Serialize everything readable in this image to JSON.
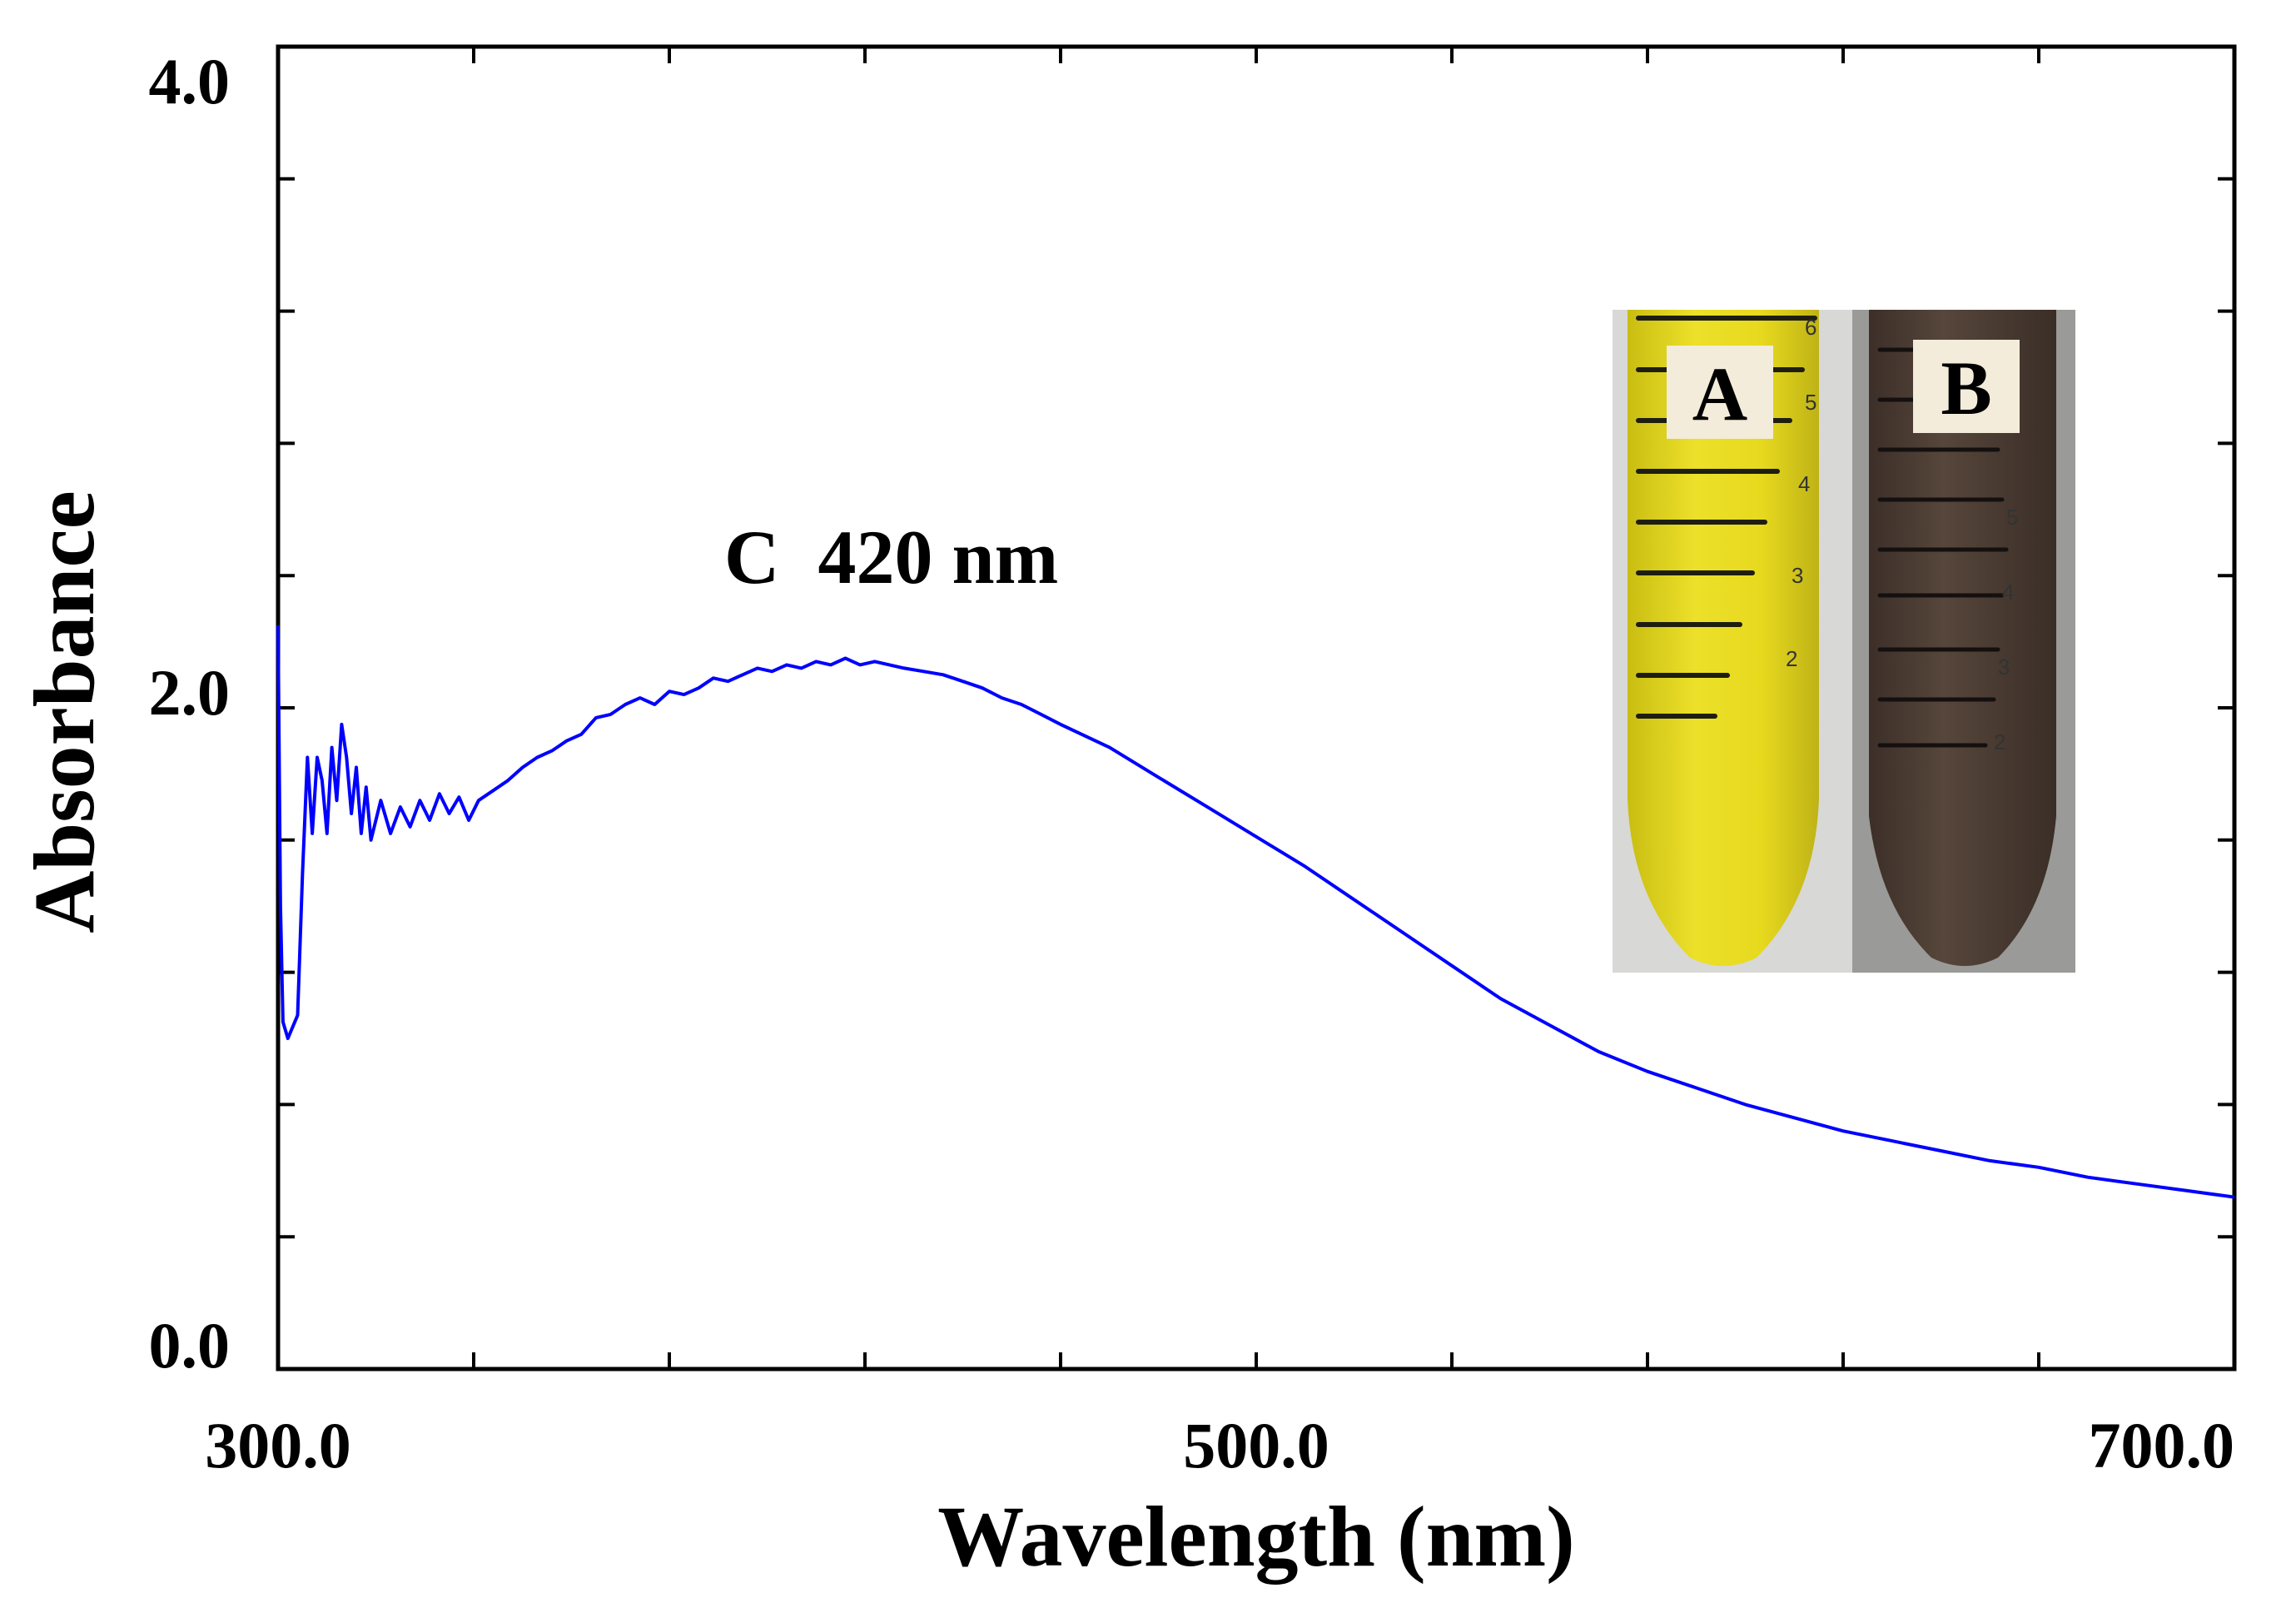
{
  "chart_data": {
    "type": "line",
    "title": "",
    "xlabel": "Wavelength (nm)",
    "ylabel": "Absorbance",
    "xlim": [
      300,
      700
    ],
    "ylim": [
      0,
      4
    ],
    "x_ticks": [
      300,
      500,
      700
    ],
    "x_tick_labels": [
      "300.0",
      "500.0",
      "700.0"
    ],
    "y_ticks": [
      0,
      2,
      4
    ],
    "y_tick_labels": [
      "0.0",
      "2.0",
      "4.0"
    ],
    "x_minor_step": 40,
    "y_minor_step": 0.4,
    "grid": false,
    "line_color": "#0000ff",
    "annotation": {
      "text": "C  420 nm",
      "x": 420
    },
    "series": [
      {
        "points": [
          [
            300,
            2.25
          ],
          [
            300.5,
            1.4
          ],
          [
            301,
            1.05
          ],
          [
            302,
            1.0
          ],
          [
            304,
            1.07
          ],
          [
            305,
            1.5
          ],
          [
            306,
            1.85
          ],
          [
            307,
            1.62
          ],
          [
            308,
            1.85
          ],
          [
            309,
            1.78
          ],
          [
            310,
            1.62
          ],
          [
            311,
            1.88
          ],
          [
            312,
            1.72
          ],
          [
            313,
            1.95
          ],
          [
            314,
            1.85
          ],
          [
            315,
            1.68
          ],
          [
            316,
            1.82
          ],
          [
            317,
            1.62
          ],
          [
            318,
            1.76
          ],
          [
            319,
            1.6
          ],
          [
            321,
            1.72
          ],
          [
            323,
            1.62
          ],
          [
            325,
            1.7
          ],
          [
            327,
            1.64
          ],
          [
            329,
            1.72
          ],
          [
            331,
            1.66
          ],
          [
            333,
            1.74
          ],
          [
            335,
            1.68
          ],
          [
            337,
            1.73
          ],
          [
            339,
            1.66
          ],
          [
            341,
            1.72
          ],
          [
            344,
            1.75
          ],
          [
            347,
            1.78
          ],
          [
            350,
            1.82
          ],
          [
            353,
            1.85
          ],
          [
            356,
            1.87
          ],
          [
            359,
            1.9
          ],
          [
            362,
            1.92
          ],
          [
            365,
            1.97
          ],
          [
            368,
            1.98
          ],
          [
            371,
            2.01
          ],
          [
            374,
            2.03
          ],
          [
            377,
            2.01
          ],
          [
            380,
            2.05
          ],
          [
            383,
            2.04
          ],
          [
            386,
            2.06
          ],
          [
            389,
            2.09
          ],
          [
            392,
            2.08
          ],
          [
            395,
            2.1
          ],
          [
            398,
            2.12
          ],
          [
            401,
            2.11
          ],
          [
            404,
            2.13
          ],
          [
            407,
            2.12
          ],
          [
            410,
            2.14
          ],
          [
            413,
            2.13
          ],
          [
            416,
            2.15
          ],
          [
            419,
            2.13
          ],
          [
            422,
            2.14
          ],
          [
            425,
            2.13
          ],
          [
            428,
            2.12
          ],
          [
            432,
            2.11
          ],
          [
            436,
            2.1
          ],
          [
            440,
            2.08
          ],
          [
            444,
            2.06
          ],
          [
            448,
            2.03
          ],
          [
            452,
            2.01
          ],
          [
            456,
            1.98
          ],
          [
            460,
            1.95
          ],
          [
            470,
            1.88
          ],
          [
            480,
            1.79
          ],
          [
            490,
            1.7
          ],
          [
            500,
            1.61
          ],
          [
            510,
            1.52
          ],
          [
            520,
            1.42
          ],
          [
            530,
            1.32
          ],
          [
            540,
            1.22
          ],
          [
            550,
            1.12
          ],
          [
            560,
            1.04
          ],
          [
            570,
            0.96
          ],
          [
            580,
            0.9
          ],
          [
            590,
            0.85
          ],
          [
            600,
            0.8
          ],
          [
            610,
            0.76
          ],
          [
            620,
            0.72
          ],
          [
            630,
            0.69
          ],
          [
            640,
            0.66
          ],
          [
            650,
            0.63
          ],
          [
            660,
            0.61
          ],
          [
            670,
            0.58
          ],
          [
            680,
            0.56
          ],
          [
            690,
            0.54
          ],
          [
            700,
            0.52
          ]
        ]
      }
    ],
    "inset": {
      "labels": [
        "A",
        "B"
      ],
      "tube_colors": [
        "#e6d51e",
        "#4a3b33"
      ],
      "tube_scale_numbers": [
        "6",
        "5",
        "4",
        "3",
        "2"
      ]
    }
  }
}
